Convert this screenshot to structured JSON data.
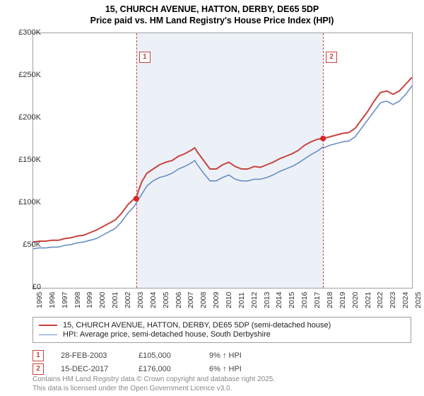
{
  "title_line1": "15, CHURCH AVENUE, HATTON, DERBY, DE65 5DP",
  "title_line2": "Price paid vs. HM Land Registry's House Price Index (HPI)",
  "chart": {
    "type": "line",
    "x_range": [
      1995,
      2025
    ],
    "y_range": [
      0,
      300000
    ],
    "y_ticks": [
      0,
      50000,
      100000,
      150000,
      200000,
      250000,
      300000
    ],
    "y_tick_labels": [
      "£0",
      "£50K",
      "£100K",
      "£150K",
      "£200K",
      "£250K",
      "£300K"
    ],
    "x_ticks": [
      1995,
      1996,
      1997,
      1998,
      1999,
      2000,
      2001,
      2002,
      2003,
      2004,
      2005,
      2006,
      2007,
      2008,
      2009,
      2010,
      2011,
      2012,
      2013,
      2014,
      2015,
      2016,
      2017,
      2018,
      2019,
      2020,
      2021,
      2022,
      2023,
      2024,
      2025
    ],
    "background_color": "#ffffff",
    "border_color": "#a0a0a0",
    "shade_color": "rgba(200,215,235,0.35)",
    "shade_start_year": 2003.16,
    "shade_end_year": 2017.96,
    "series": [
      {
        "name": "price-paid",
        "label": "15, CHURCH AVENUE, HATTON, DERBY, DE65 5DP (semi-detached house)",
        "color": "#c8443f",
        "line_width": 2,
        "points": [
          [
            1995.0,
            54000
          ],
          [
            1995.5,
            55000
          ],
          [
            1996.0,
            55000
          ],
          [
            1996.5,
            56000
          ],
          [
            1997.0,
            56000
          ],
          [
            1997.5,
            58000
          ],
          [
            1998.0,
            59000
          ],
          [
            1998.5,
            61000
          ],
          [
            1999.0,
            62000
          ],
          [
            1999.5,
            65000
          ],
          [
            2000.0,
            68000
          ],
          [
            2000.5,
            72000
          ],
          [
            2001.0,
            76000
          ],
          [
            2001.5,
            80000
          ],
          [
            2002.0,
            88000
          ],
          [
            2002.5,
            98000
          ],
          [
            2003.0,
            105000
          ],
          [
            2003.16,
            105000
          ],
          [
            2003.3,
            113000
          ],
          [
            2003.6,
            125000
          ],
          [
            2004.0,
            135000
          ],
          [
            2004.5,
            140000
          ],
          [
            2005.0,
            145000
          ],
          [
            2005.5,
            148000
          ],
          [
            2006.0,
            150000
          ],
          [
            2006.5,
            155000
          ],
          [
            2007.0,
            158000
          ],
          [
            2007.5,
            162000
          ],
          [
            2007.8,
            165000
          ],
          [
            2008.0,
            160000
          ],
          [
            2008.5,
            150000
          ],
          [
            2009.0,
            140000
          ],
          [
            2009.5,
            140000
          ],
          [
            2010.0,
            145000
          ],
          [
            2010.5,
            148000
          ],
          [
            2011.0,
            143000
          ],
          [
            2011.5,
            140000
          ],
          [
            2012.0,
            140000
          ],
          [
            2012.5,
            143000
          ],
          [
            2013.0,
            142000
          ],
          [
            2013.5,
            145000
          ],
          [
            2014.0,
            148000
          ],
          [
            2014.5,
            152000
          ],
          [
            2015.0,
            155000
          ],
          [
            2015.5,
            158000
          ],
          [
            2016.0,
            162000
          ],
          [
            2016.5,
            168000
          ],
          [
            2017.0,
            172000
          ],
          [
            2017.5,
            175000
          ],
          [
            2017.96,
            176000
          ],
          [
            2018.0,
            176000
          ],
          [
            2018.5,
            178000
          ],
          [
            2019.0,
            180000
          ],
          [
            2019.5,
            182000
          ],
          [
            2020.0,
            183000
          ],
          [
            2020.5,
            188000
          ],
          [
            2021.0,
            198000
          ],
          [
            2021.5,
            208000
          ],
          [
            2022.0,
            220000
          ],
          [
            2022.5,
            230000
          ],
          [
            2023.0,
            232000
          ],
          [
            2023.5,
            228000
          ],
          [
            2024.0,
            232000
          ],
          [
            2024.5,
            240000
          ],
          [
            2025.0,
            248000
          ]
        ]
      },
      {
        "name": "hpi",
        "label": "HPI: Average price, semi-detached house, South Derbyshire",
        "color": "#6a8fc4",
        "line_width": 1.6,
        "points": [
          [
            1995.0,
            46000
          ],
          [
            1995.5,
            47000
          ],
          [
            1996.0,
            47000
          ],
          [
            1996.5,
            48000
          ],
          [
            1997.0,
            48000
          ],
          [
            1997.5,
            50000
          ],
          [
            1998.0,
            51000
          ],
          [
            1998.5,
            53000
          ],
          [
            1999.0,
            54000
          ],
          [
            1999.5,
            56000
          ],
          [
            2000.0,
            58000
          ],
          [
            2000.5,
            62000
          ],
          [
            2001.0,
            66000
          ],
          [
            2001.5,
            70000
          ],
          [
            2002.0,
            78000
          ],
          [
            2002.5,
            88000
          ],
          [
            2003.0,
            96000
          ],
          [
            2003.5,
            108000
          ],
          [
            2004.0,
            120000
          ],
          [
            2004.5,
            126000
          ],
          [
            2005.0,
            130000
          ],
          [
            2005.5,
            132000
          ],
          [
            2006.0,
            135000
          ],
          [
            2006.5,
            140000
          ],
          [
            2007.0,
            143000
          ],
          [
            2007.5,
            147000
          ],
          [
            2007.8,
            150000
          ],
          [
            2008.0,
            145000
          ],
          [
            2008.5,
            135000
          ],
          [
            2009.0,
            126000
          ],
          [
            2009.5,
            126000
          ],
          [
            2010.0,
            130000
          ],
          [
            2010.5,
            133000
          ],
          [
            2011.0,
            128000
          ],
          [
            2011.5,
            126000
          ],
          [
            2012.0,
            126000
          ],
          [
            2012.5,
            128000
          ],
          [
            2013.0,
            128000
          ],
          [
            2013.5,
            130000
          ],
          [
            2014.0,
            133000
          ],
          [
            2014.5,
            137000
          ],
          [
            2015.0,
            140000
          ],
          [
            2015.5,
            143000
          ],
          [
            2016.0,
            147000
          ],
          [
            2016.5,
            152000
          ],
          [
            2017.0,
            157000
          ],
          [
            2017.5,
            161000
          ],
          [
            2017.96,
            166000
          ],
          [
            2018.0,
            165000
          ],
          [
            2018.5,
            168000
          ],
          [
            2019.0,
            170000
          ],
          [
            2019.5,
            172000
          ],
          [
            2020.0,
            173000
          ],
          [
            2020.5,
            178000
          ],
          [
            2021.0,
            188000
          ],
          [
            2021.5,
            198000
          ],
          [
            2022.0,
            208000
          ],
          [
            2022.5,
            218000
          ],
          [
            2023.0,
            220000
          ],
          [
            2023.5,
            216000
          ],
          [
            2024.0,
            220000
          ],
          [
            2024.5,
            228000
          ],
          [
            2025.0,
            238000
          ]
        ]
      }
    ],
    "sale_dots": [
      {
        "year": 2003.16,
        "value": 105000,
        "color": "#e02020"
      },
      {
        "year": 2017.96,
        "value": 176000,
        "color": "#e02020"
      }
    ],
    "markers": [
      {
        "num": "1",
        "year": 2003.16,
        "label_y_offset": 26
      },
      {
        "num": "2",
        "year": 2017.96,
        "label_y_offset": 26
      }
    ]
  },
  "legend": {
    "rows": [
      {
        "color": "#c8443f",
        "width": 2,
        "text": "15, CHURCH AVENUE, HATTON, DERBY, DE65 5DP (semi-detached house)"
      },
      {
        "color": "#6a8fc4",
        "width": 1.6,
        "text": "HPI: Average price, semi-detached house, South Derbyshire"
      }
    ]
  },
  "events": [
    {
      "num": "1",
      "date": "28-FEB-2003",
      "price": "£105,000",
      "diff": "9% ↑ HPI"
    },
    {
      "num": "2",
      "date": "15-DEC-2017",
      "price": "£176,000",
      "diff": "6% ↑ HPI"
    }
  ],
  "footer": {
    "line1": "Contains HM Land Registry data © Crown copyright and database right 2025.",
    "line2": "This data is licensed under the Open Government Licence v3.0."
  }
}
